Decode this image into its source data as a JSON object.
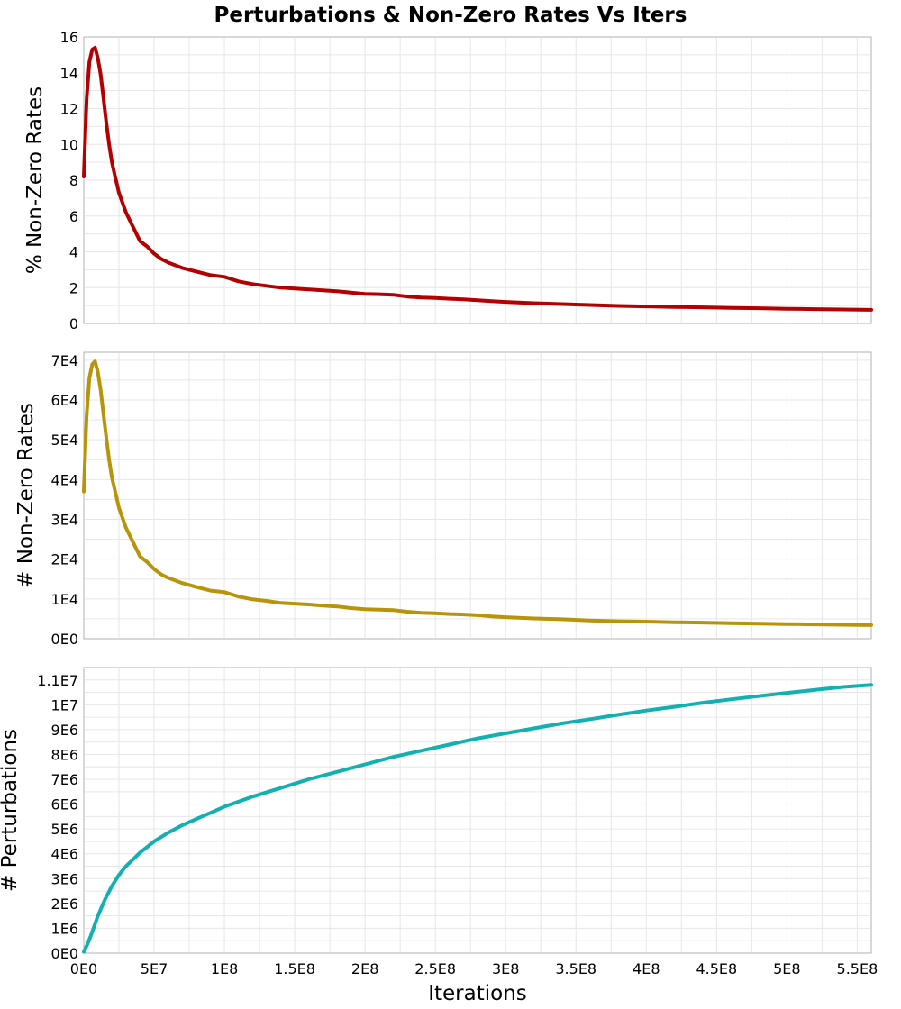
{
  "chart_data": {
    "title": "Perturbations & Non-Zero Rates Vs Iters",
    "x_label": "Iterations",
    "x_ticks": [
      "0E0",
      "5E7",
      "1E8",
      "1.5E8",
      "2E8",
      "2.5E8",
      "3E8",
      "3.5E8",
      "4E8",
      "4.5E8",
      "5E8",
      "5.5E8"
    ],
    "x_tick_values": [
      0,
      50000000,
      100000000,
      150000000,
      200000000,
      250000000,
      300000000,
      350000000,
      400000000,
      450000000,
      500000000,
      550000000
    ],
    "xlim": [
      0,
      560000000
    ],
    "grid": true,
    "panels": [
      {
        "type": "line",
        "ylabel": "% Non-Zero Rates",
        "color": "#b30000",
        "ylim": [
          0,
          16
        ],
        "y_ticks": [
          "0",
          "2",
          "4",
          "6",
          "8",
          "10",
          "12",
          "14",
          "16"
        ],
        "y_tick_values": [
          0,
          2,
          4,
          6,
          8,
          10,
          12,
          14,
          16
        ],
        "x": [
          0,
          2000000,
          4000000,
          6000000,
          8000000,
          10000000,
          12000000,
          14000000,
          16000000,
          18000000,
          20000000,
          22000000,
          25000000,
          30000000,
          35000000,
          40000000,
          45000000,
          50000000,
          55000000,
          60000000,
          70000000,
          80000000,
          90000000,
          100000000,
          110000000,
          120000000,
          130000000,
          140000000,
          150000000,
          160000000,
          170000000,
          180000000,
          190000000,
          200000000,
          210000000,
          220000000,
          230000000,
          240000000,
          250000000,
          260000000,
          270000000,
          280000000,
          290000000,
          300000000,
          320000000,
          340000000,
          360000000,
          380000000,
          400000000,
          420000000,
          440000000,
          460000000,
          480000000,
          500000000,
          520000000,
          540000000,
          560000000
        ],
        "y": [
          8.2,
          12.5,
          14.6,
          15.3,
          15.4,
          14.8,
          13.9,
          12.6,
          11.2,
          10.0,
          9.0,
          8.3,
          7.3,
          6.2,
          5.4,
          4.6,
          4.3,
          3.9,
          3.6,
          3.4,
          3.1,
          2.9,
          2.7,
          2.6,
          2.35,
          2.2,
          2.1,
          2.0,
          1.95,
          1.9,
          1.85,
          1.8,
          1.72,
          1.65,
          1.63,
          1.6,
          1.5,
          1.45,
          1.42,
          1.38,
          1.35,
          1.3,
          1.25,
          1.2,
          1.13,
          1.08,
          1.03,
          0.98,
          0.95,
          0.92,
          0.9,
          0.87,
          0.85,
          0.82,
          0.8,
          0.78,
          0.76
        ]
      },
      {
        "type": "line",
        "ylabel": "# Non-Zero Rates",
        "color": "#b8940a",
        "ylim": [
          0,
          72000
        ],
        "y_ticks": [
          "0E0",
          "1E4",
          "2E4",
          "3E4",
          "4E4",
          "5E4",
          "6E4",
          "7E4"
        ],
        "y_tick_values": [
          0,
          10000,
          20000,
          30000,
          40000,
          50000,
          60000,
          70000
        ],
        "x": [
          0,
          2000000,
          4000000,
          6000000,
          8000000,
          10000000,
          12000000,
          14000000,
          16000000,
          18000000,
          20000000,
          22000000,
          25000000,
          30000000,
          35000000,
          40000000,
          45000000,
          50000000,
          55000000,
          60000000,
          70000000,
          80000000,
          90000000,
          100000000,
          110000000,
          120000000,
          130000000,
          140000000,
          150000000,
          160000000,
          170000000,
          180000000,
          190000000,
          200000000,
          210000000,
          220000000,
          230000000,
          240000000,
          250000000,
          260000000,
          270000000,
          280000000,
          290000000,
          300000000,
          320000000,
          340000000,
          360000000,
          380000000,
          400000000,
          420000000,
          440000000,
          460000000,
          480000000,
          500000000,
          520000000,
          540000000,
          560000000
        ],
        "y": [
          37000,
          56000,
          65500,
          69000,
          69700,
          67000,
          62500,
          56500,
          50500,
          45000,
          40500,
          37500,
          32900,
          27900,
          24300,
          20700,
          19300,
          17500,
          16200,
          15300,
          14000,
          13000,
          12100,
          11700,
          10600,
          9900,
          9500,
          9000,
          8800,
          8600,
          8300,
          8100,
          7700,
          7400,
          7300,
          7200,
          6800,
          6500,
          6400,
          6200,
          6100,
          5900,
          5600,
          5400,
          5100,
          4900,
          4600,
          4400,
          4300,
          4150,
          4050,
          3900,
          3800,
          3700,
          3600,
          3500,
          3420
        ]
      },
      {
        "type": "line",
        "ylabel": "# Perturbations",
        "color": "#12b0b0",
        "ylim": [
          0,
          11500000
        ],
        "y_ticks": [
          "0E0",
          "1E6",
          "2E6",
          "3E6",
          "4E6",
          "5E6",
          "6E6",
          "7E6",
          "8E6",
          "9E6",
          "1E7",
          "1.1E7"
        ],
        "y_tick_values": [
          0,
          1000000,
          2000000,
          3000000,
          4000000,
          5000000,
          6000000,
          7000000,
          8000000,
          9000000,
          10000000,
          11000000
        ],
        "x": [
          0,
          2500000,
          5000000,
          7500000,
          10000000,
          15000000,
          20000000,
          25000000,
          30000000,
          40000000,
          50000000,
          60000000,
          70000000,
          80000000,
          90000000,
          100000000,
          120000000,
          140000000,
          160000000,
          180000000,
          200000000,
          220000000,
          240000000,
          260000000,
          280000000,
          300000000,
          320000000,
          340000000,
          360000000,
          380000000,
          400000000,
          420000000,
          440000000,
          460000000,
          480000000,
          500000000,
          520000000,
          540000000,
          560000000
        ],
        "y": [
          50000,
          350000,
          700000,
          1100000,
          1500000,
          2150000,
          2700000,
          3150000,
          3500000,
          4050000,
          4500000,
          4850000,
          5150000,
          5400000,
          5650000,
          5900000,
          6300000,
          6650000,
          7000000,
          7300000,
          7600000,
          7900000,
          8150000,
          8400000,
          8650000,
          8850000,
          9050000,
          9250000,
          9420000,
          9600000,
          9770000,
          9920000,
          10080000,
          10220000,
          10350000,
          10480000,
          10600000,
          10720000,
          10800000
        ]
      }
    ]
  }
}
